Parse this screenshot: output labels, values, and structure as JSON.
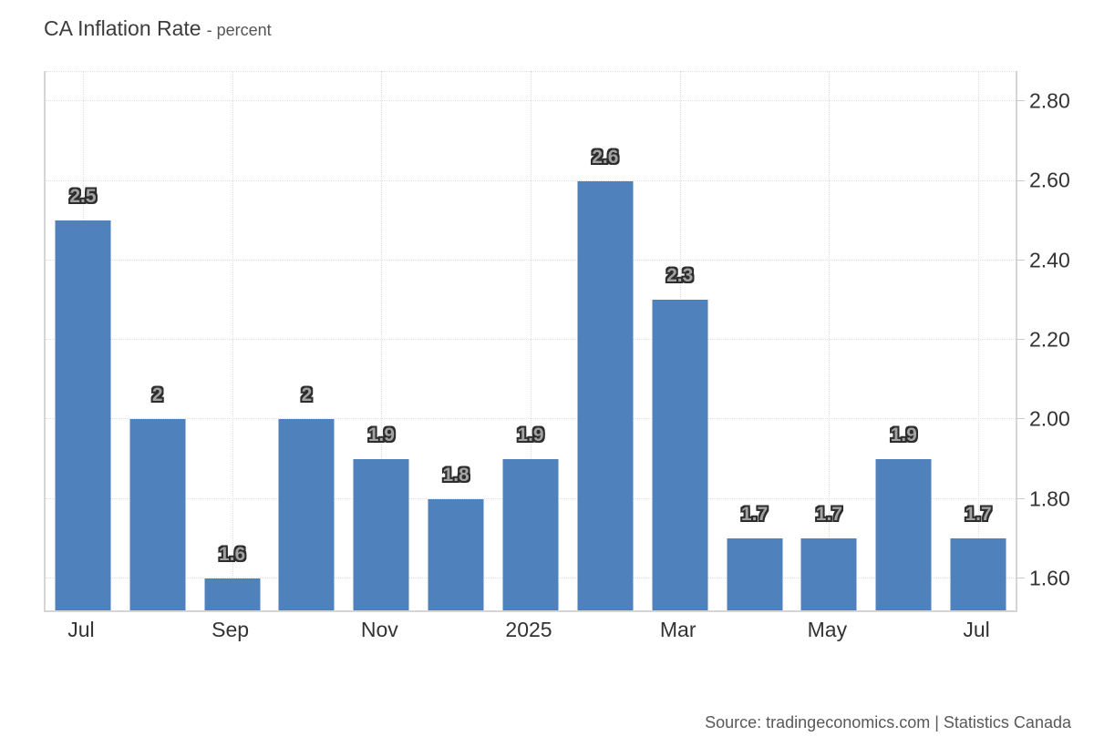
{
  "header": {
    "title": "CA Inflation Rate",
    "subtitle": "- percent"
  },
  "footer": {
    "source": "Source: tradingeconomics.com | Statistics Canada"
  },
  "chart_data": {
    "type": "bar",
    "title": "CA Inflation Rate - percent",
    "series": [
      {
        "name": "CA Inflation Rate",
        "values": [
          2.5,
          2,
          1.6,
          2,
          1.9,
          1.8,
          1.9,
          2.6,
          2.3,
          1.7,
          1.7,
          1.9,
          1.7
        ]
      }
    ],
    "bar_value_labels": [
      "2.5",
      "2",
      "1.6",
      "2",
      "1.9",
      "1.8",
      "1.9",
      "2.6",
      "2.3",
      "1.7",
      "1.7",
      "1.9",
      "1.7"
    ],
    "n_slots": 13,
    "x_tick_labels": [
      "Jul",
      "Sep",
      "Nov",
      "2025",
      "Mar",
      "May",
      "Jul"
    ],
    "x_tick_slots": [
      0,
      2,
      4,
      6,
      8,
      10,
      12
    ],
    "y_tick_labels": [
      "2.80",
      "2.60",
      "2.40",
      "2.20",
      "2.00",
      "1.80",
      "1.60"
    ],
    "y_tick_values": [
      2.8,
      2.6,
      2.4,
      2.2,
      2.0,
      1.8,
      1.6
    ],
    "ylim": [
      1.52,
      2.876
    ],
    "xlabel": "",
    "ylabel": "percent",
    "grid": "dotted",
    "y_axis_position": "right",
    "legend": "none",
    "colors": {
      "bar": "#4f81bd",
      "grid": "#dedede",
      "axis": "#d5d5d5",
      "tick_text": "#333333",
      "bar_label_fill": "#a3a3a3",
      "bar_label_outline": "#2d2d2d"
    }
  }
}
